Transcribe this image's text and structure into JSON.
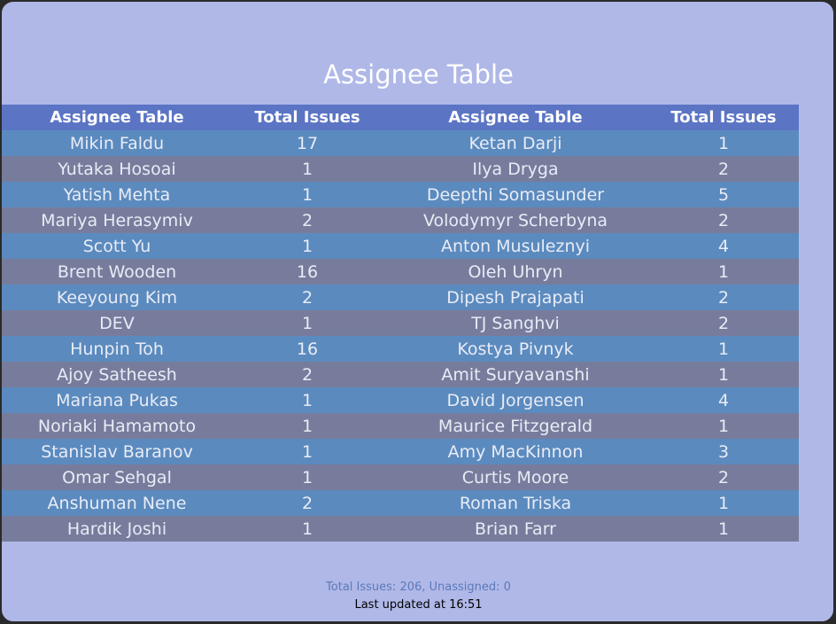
{
  "title": "Assignee Table",
  "columns": {
    "left_name": "Assignee Table",
    "left_count": "Total Issues",
    "right_name": "Assignee Table",
    "right_count": "Total Issues"
  },
  "rows": [
    {
      "left_name": "Mikin Faldu",
      "left_count": "17",
      "right_name": "Ketan Darji",
      "right_count": "1"
    },
    {
      "left_name": "Yutaka Hosoai",
      "left_count": "1",
      "right_name": "Ilya Dryga",
      "right_count": "2"
    },
    {
      "left_name": "Yatish Mehta",
      "left_count": "1",
      "right_name": "Deepthi Somasunder",
      "right_count": "5"
    },
    {
      "left_name": "Mariya Herasymiv",
      "left_count": "2",
      "right_name": "Volodymyr Scherbyna",
      "right_count": "2"
    },
    {
      "left_name": "Scott Yu",
      "left_count": "1",
      "right_name": "Anton Musuleznyi",
      "right_count": "4"
    },
    {
      "left_name": "Brent Wooden",
      "left_count": "16",
      "right_name": "Oleh Uhryn",
      "right_count": "1"
    },
    {
      "left_name": "Keeyoung Kim",
      "left_count": "2",
      "right_name": "Dipesh Prajapati",
      "right_count": "2"
    },
    {
      "left_name": "DEV",
      "left_count": "1",
      "right_name": "TJ Sanghvi",
      "right_count": "2"
    },
    {
      "left_name": "Hunpin Toh",
      "left_count": "16",
      "right_name": "Kostya Pivnyk",
      "right_count": "1"
    },
    {
      "left_name": "Ajoy Satheesh",
      "left_count": "2",
      "right_name": "Amit Suryavanshi",
      "right_count": "1"
    },
    {
      "left_name": "Mariana Pukas",
      "left_count": "1",
      "right_name": "David Jorgensen",
      "right_count": "4"
    },
    {
      "left_name": "Noriaki Hamamoto",
      "left_count": "1",
      "right_name": "Maurice Fitzgerald",
      "right_count": "1"
    },
    {
      "left_name": "Stanislav Baranov",
      "left_count": "1",
      "right_name": "Amy MacKinnon",
      "right_count": "3"
    },
    {
      "left_name": "Omar Sehgal",
      "left_count": "1",
      "right_name": "Curtis Moore",
      "right_count": "2"
    },
    {
      "left_name": "Anshuman Nene",
      "left_count": "2",
      "right_name": "Roman Triska",
      "right_count": "1"
    },
    {
      "left_name": "Hardik Joshi",
      "left_count": "1",
      "right_name": "Brian Farr",
      "right_count": "1"
    }
  ],
  "footer": {
    "summary": "Total Issues: 206, Unassigned: 0",
    "updated": "Last updated at 16:51"
  },
  "colors": {
    "background": "#b0b8e8",
    "header": "#5b74c4",
    "row_odd": "#5b8abe",
    "row_even": "#787c9c",
    "summary_text": "#5b7ab8"
  }
}
